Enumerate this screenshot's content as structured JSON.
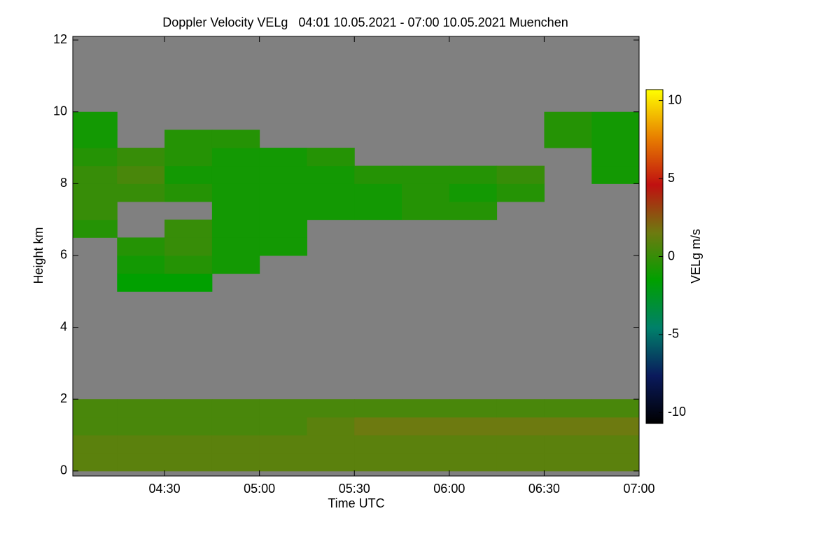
{
  "chart_data": {
    "type": "heatmap",
    "title": "Doppler Velocity VELg   04:01 10.05.2021 - 07:00 10.05.2021 Muenchen",
    "x_label": "Time UTC",
    "y_label": "Height km",
    "colorbar_label": "VELg m/s",
    "xlim": [
      "04:01",
      "07:00"
    ],
    "xticks": [
      "04:30",
      "05:00",
      "05:30",
      "06:00",
      "06:30",
      "07:00"
    ],
    "ylim": [
      -0.14,
      12.1
    ],
    "yticks": [
      0,
      2,
      4,
      6,
      8,
      10,
      12
    ],
    "clim": [
      -10.7,
      10.7
    ],
    "cticks": [
      -10,
      -5,
      0,
      5,
      10
    ],
    "colormap": [
      "#000000",
      "#0a1a5c",
      "#00806a",
      "#00a000",
      "#6e7a10",
      "#c01010",
      "#e88000",
      "#ffff00"
    ],
    "no_data_color": "#808080",
    "x_bins": [
      "04:01",
      "04:15",
      "04:30",
      "04:45",
      "05:00",
      "05:15",
      "05:30",
      "05:45",
      "06:00",
      "06:15",
      "06:30",
      "06:45",
      "07:00"
    ],
    "y_bins": [
      0,
      0.5,
      1,
      1.5,
      2,
      2.5,
      3,
      3.5,
      4,
      4.5,
      5,
      5.5,
      6,
      6.5,
      7,
      7.5,
      8,
      8.5,
      9,
      9.5,
      10,
      10.5,
      11,
      11.5,
      12
    ],
    "z": [
      [
        1,
        1,
        1,
        1,
        1,
        1,
        1,
        1,
        1,
        1,
        1,
        1
      ],
      [
        1,
        1,
        1,
        1,
        1,
        1,
        1,
        1,
        1,
        1,
        1,
        1
      ],
      [
        0.5,
        0.5,
        0.5,
        0.5,
        0.5,
        1,
        1.5,
        1.5,
        1.5,
        1.5,
        1.5,
        1.5
      ],
      [
        0.5,
        0.5,
        0.5,
        0.5,
        0.5,
        0.5,
        0.5,
        0.5,
        0.5,
        0.5,
        0.5,
        0.5
      ],
      [
        null,
        null,
        null,
        null,
        null,
        null,
        null,
        null,
        null,
        null,
        null,
        null
      ],
      [
        null,
        null,
        null,
        null,
        null,
        null,
        null,
        null,
        null,
        null,
        null,
        null
      ],
      [
        null,
        null,
        null,
        null,
        null,
        null,
        null,
        null,
        null,
        null,
        null,
        null
      ],
      [
        null,
        null,
        null,
        null,
        null,
        null,
        null,
        null,
        null,
        null,
        null,
        null
      ],
      [
        null,
        null,
        null,
        null,
        null,
        null,
        null,
        null,
        null,
        null,
        null,
        null
      ],
      [
        null,
        null,
        null,
        null,
        null,
        null,
        null,
        null,
        null,
        null,
        null,
        null
      ],
      [
        null,
        -1.5,
        -1.5,
        null,
        null,
        null,
        null,
        null,
        null,
        null,
        null,
        null
      ],
      [
        null,
        -1,
        -0.5,
        -1,
        null,
        null,
        null,
        null,
        null,
        null,
        null,
        null
      ],
      [
        null,
        -0.5,
        0,
        -1,
        -1,
        null,
        null,
        null,
        null,
        null,
        null,
        null
      ],
      [
        -0.5,
        null,
        0,
        -1,
        -1,
        null,
        null,
        null,
        null,
        null,
        null,
        null
      ],
      [
        0,
        null,
        null,
        -1,
        -1,
        -1,
        -1,
        -0.5,
        -0.5,
        null,
        null,
        null
      ],
      [
        0,
        0,
        -0.5,
        -1,
        -1,
        -1,
        -1,
        -0.5,
        -1,
        -0.5,
        null,
        null
      ],
      [
        0,
        0.5,
        -1,
        -1,
        -1,
        -1,
        -0.5,
        -0.5,
        -0.5,
        0,
        null,
        -1
      ],
      [
        -0.5,
        0,
        -0.5,
        -1,
        -1,
        -0.5,
        null,
        null,
        null,
        null,
        null,
        -1
      ],
      [
        -1,
        null,
        -0.5,
        -0.5,
        null,
        null,
        null,
        null,
        null,
        null,
        -0.5,
        -1
      ],
      [
        -1,
        null,
        null,
        null,
        null,
        null,
        null,
        null,
        null,
        null,
        -0.5,
        -1
      ],
      [
        null,
        null,
        null,
        null,
        null,
        null,
        null,
        null,
        null,
        null,
        null,
        null
      ],
      [
        null,
        null,
        null,
        null,
        null,
        null,
        null,
        null,
        null,
        null,
        null,
        null
      ],
      [
        null,
        null,
        null,
        null,
        null,
        null,
        null,
        null,
        null,
        null,
        null,
        null
      ],
      [
        null,
        null,
        null,
        null,
        null,
        null,
        null,
        null,
        null,
        null,
        null,
        null
      ]
    ]
  }
}
